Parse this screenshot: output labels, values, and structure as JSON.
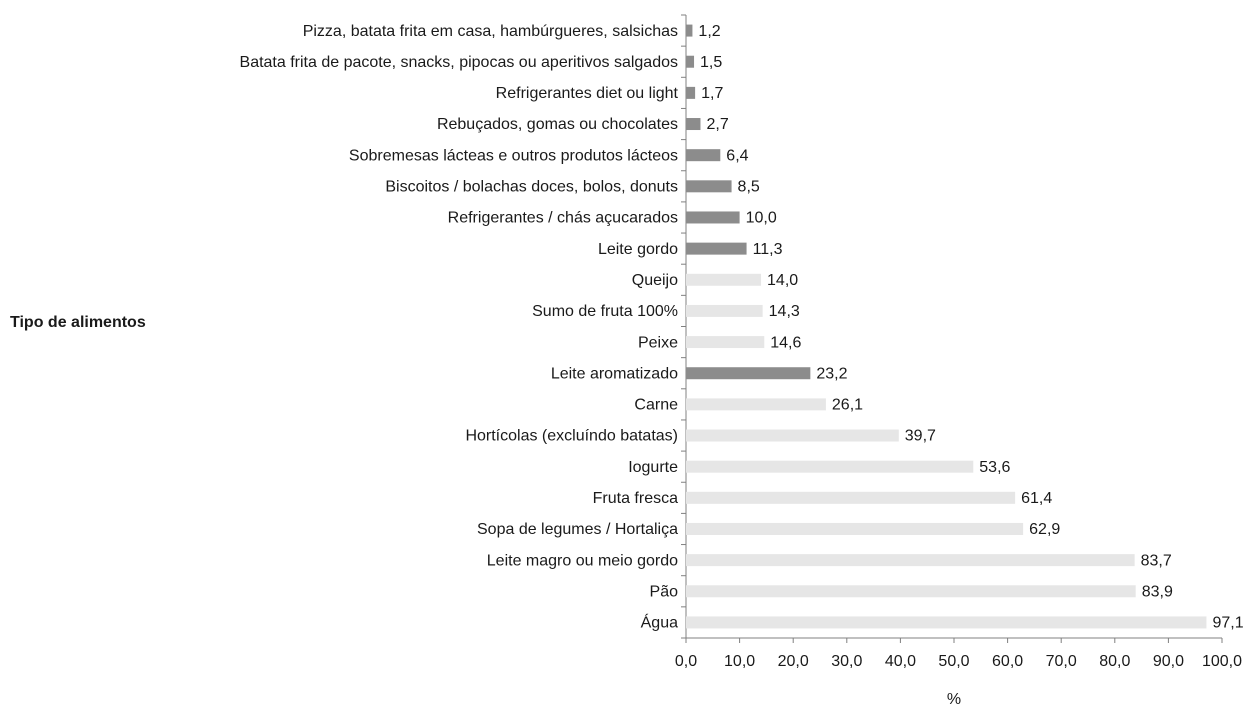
{
  "chart_data": {
    "type": "barh",
    "y_label": "Tipo de alimentos",
    "x_label": "%",
    "categories": [
      "Pizza, batata frita em casa, hambúrgueres, salsichas",
      "Batata frita de pacote, snacks, pipocas ou aperitivos salgados",
      "Refrigerantes diet ou light",
      "Rebuçados, gomas ou chocolates",
      "Sobremesas lácteas e outros produtos lácteos",
      "Biscoitos / bolachas doces, bolos, donuts",
      "Refrigerantes / chás açucarados",
      "Leite gordo",
      "Queijo",
      "Sumo de fruta 100%",
      "Peixe",
      "Leite aromatizado",
      "Carne",
      "Hortícolas (excluíndo batatas)",
      "Iogurte",
      "Fruta fresca",
      "Sopa de legumes / Hortaliça",
      "Leite magro ou meio gordo",
      "Pão",
      "Água"
    ],
    "values": [
      1.2,
      1.5,
      1.7,
      2.7,
      6.4,
      8.5,
      10.0,
      11.3,
      14.0,
      14.3,
      14.6,
      23.2,
      26.1,
      39.7,
      53.6,
      61.4,
      62.9,
      83.7,
      83.9,
      97.1
    ],
    "value_labels": [
      "1,2",
      "1,5",
      "1,7",
      "2,7",
      "6,4",
      "8,5",
      "10,0",
      "11,3",
      "14,0",
      "14,3",
      "14,6",
      "23,2",
      "26,1",
      "39,7",
      "53,6",
      "61,4",
      "62,9",
      "83,7",
      "83,9",
      "97,1"
    ],
    "colors": [
      "#8c8c8c",
      "#8c8c8c",
      "#8c8c8c",
      "#8c8c8c",
      "#8c8c8c",
      "#8c8c8c",
      "#8c8c8c",
      "#8c8c8c",
      "#e6e6e6",
      "#e6e6e6",
      "#e6e6e6",
      "#8c8c8c",
      "#e6e6e6",
      "#e6e6e6",
      "#e6e6e6",
      "#e6e6e6",
      "#e6e6e6",
      "#e6e6e6",
      "#e6e6e6",
      "#e6e6e6"
    ],
    "xlim": [
      0,
      100
    ],
    "xticks": [
      {
        "value": 0,
        "label": "0,0"
      },
      {
        "value": 10,
        "label": "10,0"
      },
      {
        "value": 20,
        "label": "20,0"
      },
      {
        "value": 30,
        "label": "30,0"
      },
      {
        "value": 40,
        "label": "40,0"
      },
      {
        "value": 50,
        "label": "50,0"
      },
      {
        "value": 60,
        "label": "60,0"
      },
      {
        "value": 70,
        "label": "70,0"
      },
      {
        "value": 80,
        "label": "80,0"
      },
      {
        "value": 90,
        "label": "90,0"
      },
      {
        "value": 100,
        "label": "100,0"
      }
    ]
  }
}
